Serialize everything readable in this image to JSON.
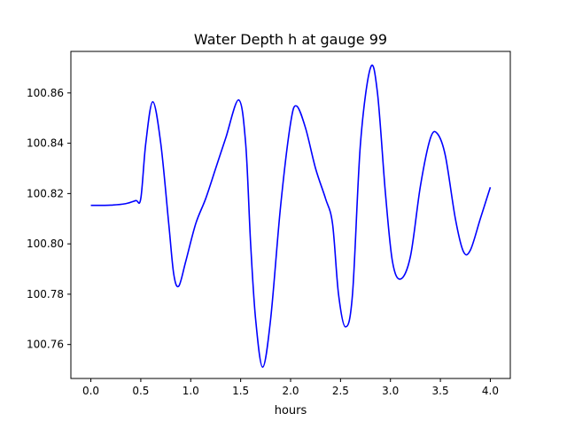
{
  "chart_data": {
    "type": "line",
    "title": "Water Depth h at gauge 99",
    "xlabel": "hours",
    "ylabel": "",
    "xlim": [
      -0.2,
      4.2
    ],
    "ylim": [
      100.7465,
      100.8765
    ],
    "xticks": [
      0.0,
      0.5,
      1.0,
      1.5,
      2.0,
      2.5,
      3.0,
      3.5,
      4.0
    ],
    "xtick_labels": [
      "0.0",
      "0.5",
      "1.0",
      "1.5",
      "2.0",
      "2.5",
      "3.0",
      "3.5",
      "4.0"
    ],
    "yticks": [
      100.76,
      100.78,
      100.8,
      100.82,
      100.84,
      100.86
    ],
    "ytick_labels": [
      "100.76",
      "100.78",
      "100.80",
      "100.82",
      "100.84",
      "100.86"
    ],
    "grid": false,
    "series": [
      {
        "color": "#0000ff",
        "points": [
          [
            0.0,
            100.8153
          ],
          [
            0.2,
            100.8154
          ],
          [
            0.35,
            100.816
          ],
          [
            0.45,
            100.8172
          ],
          [
            0.5,
            100.818
          ],
          [
            0.55,
            100.84
          ],
          [
            0.62,
            100.8565
          ],
          [
            0.7,
            100.84
          ],
          [
            0.78,
            100.808
          ],
          [
            0.83,
            100.788
          ],
          [
            0.88,
            100.7832
          ],
          [
            0.95,
            100.793
          ],
          [
            1.05,
            100.808
          ],
          [
            1.15,
            100.818
          ],
          [
            1.25,
            100.83
          ],
          [
            1.35,
            100.842
          ],
          [
            1.48,
            100.8572
          ],
          [
            1.55,
            100.84
          ],
          [
            1.6,
            100.8
          ],
          [
            1.65,
            100.77
          ],
          [
            1.72,
            100.751
          ],
          [
            1.8,
            100.77
          ],
          [
            1.9,
            100.815
          ],
          [
            2.0,
            100.848
          ],
          [
            2.06,
            100.8548
          ],
          [
            2.15,
            100.846
          ],
          [
            2.25,
            100.83
          ],
          [
            2.35,
            100.818
          ],
          [
            2.42,
            100.808
          ],
          [
            2.48,
            100.78
          ],
          [
            2.55,
            100.767
          ],
          [
            2.62,
            100.78
          ],
          [
            2.7,
            100.84
          ],
          [
            2.8,
            100.87
          ],
          [
            2.87,
            100.86
          ],
          [
            2.95,
            100.82
          ],
          [
            3.02,
            100.793
          ],
          [
            3.1,
            100.786
          ],
          [
            3.2,
            100.795
          ],
          [
            3.3,
            100.823
          ],
          [
            3.4,
            100.842
          ],
          [
            3.47,
            100.8438
          ],
          [
            3.55,
            100.835
          ],
          [
            3.65,
            100.81
          ],
          [
            3.73,
            100.797
          ],
          [
            3.8,
            100.7975
          ],
          [
            3.9,
            100.81
          ],
          [
            4.0,
            100.8225
          ]
        ]
      }
    ]
  }
}
